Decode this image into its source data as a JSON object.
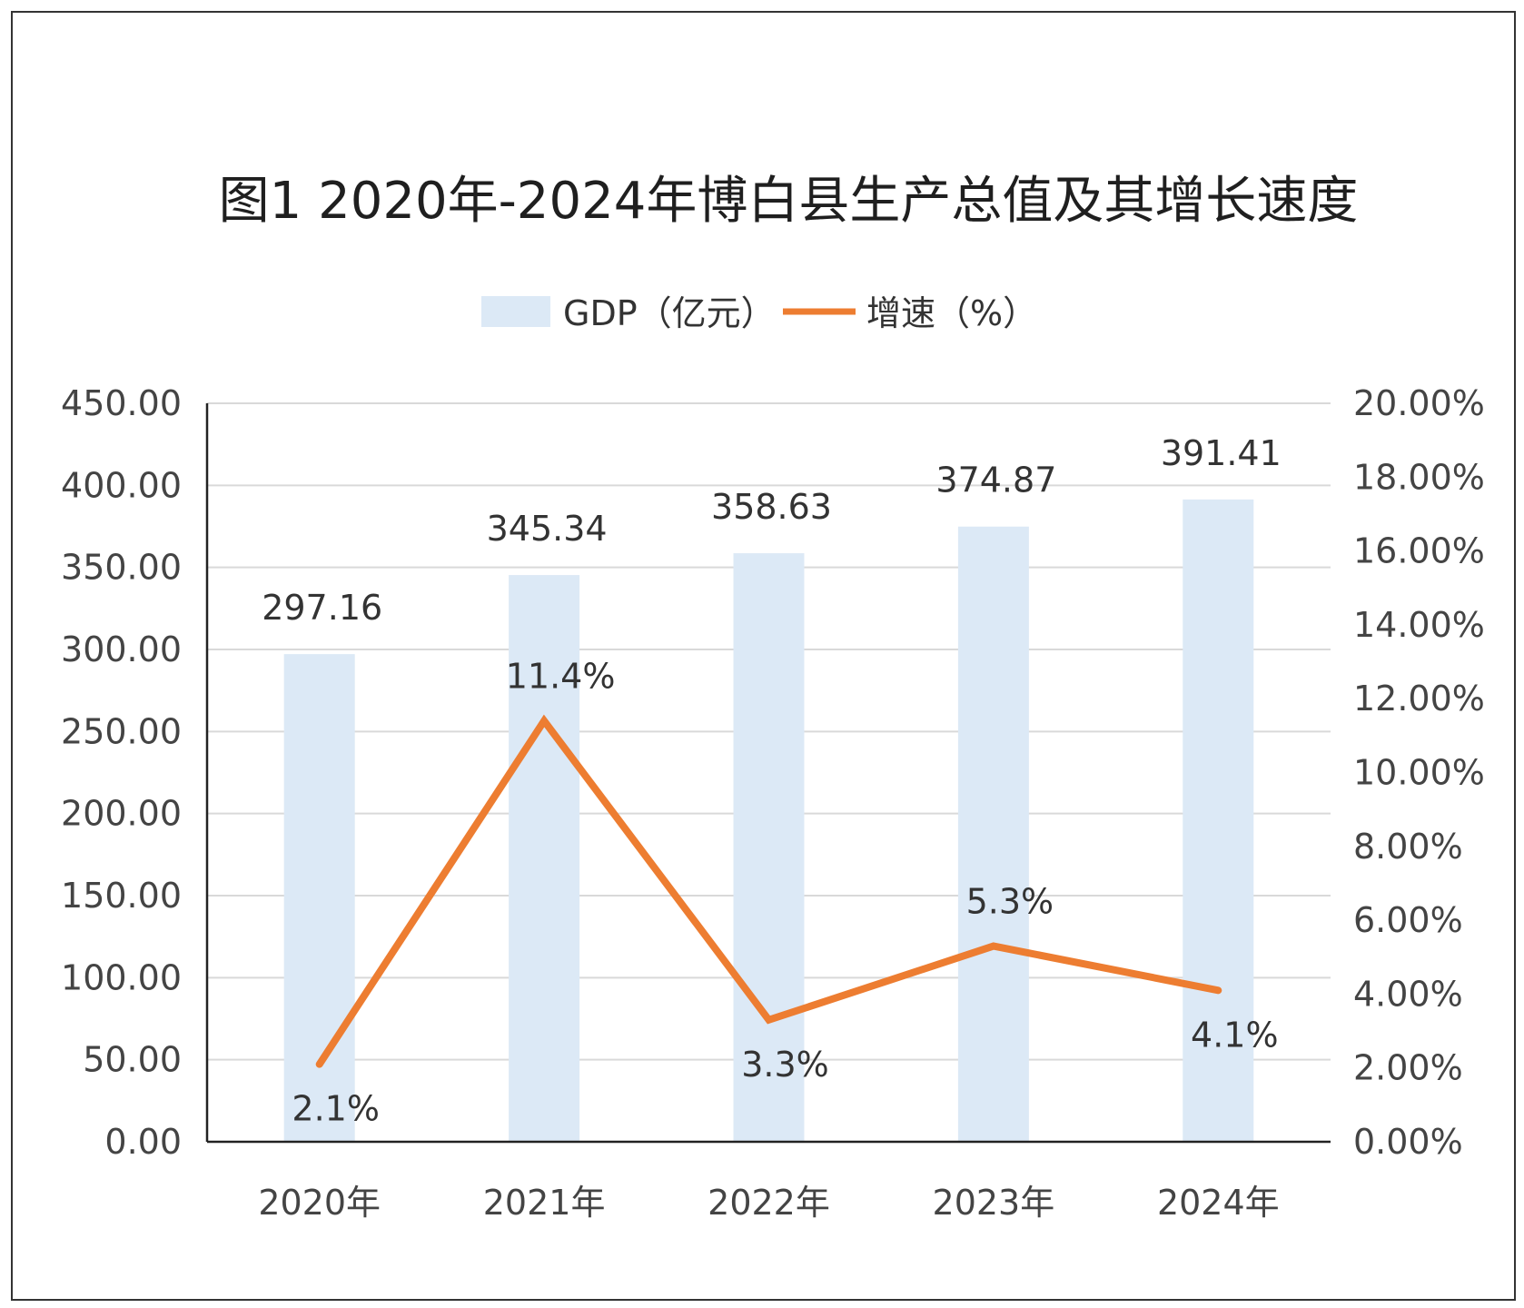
{
  "chart_data": {
    "type": "bar",
    "title": "图1 2020年-2024年博白县生产总值及其增长速度",
    "categories": [
      "2020年",
      "2021年",
      "2022年",
      "2023年",
      "2024年"
    ],
    "series": [
      {
        "name": "GDP（亿元）",
        "type": "bar",
        "axis": "left",
        "values": [
          297.16,
          345.34,
          358.63,
          374.87,
          391.41
        ],
        "labels": [
          "297.16",
          "345.34",
          "358.63",
          "374.87",
          "391.41"
        ],
        "color": "#dce9f6"
      },
      {
        "name": "增速（%）",
        "type": "line",
        "axis": "right",
        "values": [
          2.1,
          11.4,
          3.3,
          5.3,
          4.1
        ],
        "labels": [
          "2.1%",
          "11.4%",
          "3.3%",
          "5.3%",
          "4.1%"
        ],
        "color": "#ed7d31"
      }
    ],
    "y_left": {
      "min": 0,
      "max": 450,
      "ticks": [
        "0.00",
        "50.00",
        "100.00",
        "150.00",
        "200.00",
        "250.00",
        "300.00",
        "350.00",
        "400.00",
        "450.00"
      ]
    },
    "y_right": {
      "min": 0,
      "max": 20,
      "ticks": [
        "0.00%",
        "2.00%",
        "4.00%",
        "6.00%",
        "8.00%",
        "10.00%",
        "12.00%",
        "14.00%",
        "16.00%",
        "18.00%",
        "20.00%"
      ]
    },
    "grid": true,
    "legend_position": "top-center"
  }
}
